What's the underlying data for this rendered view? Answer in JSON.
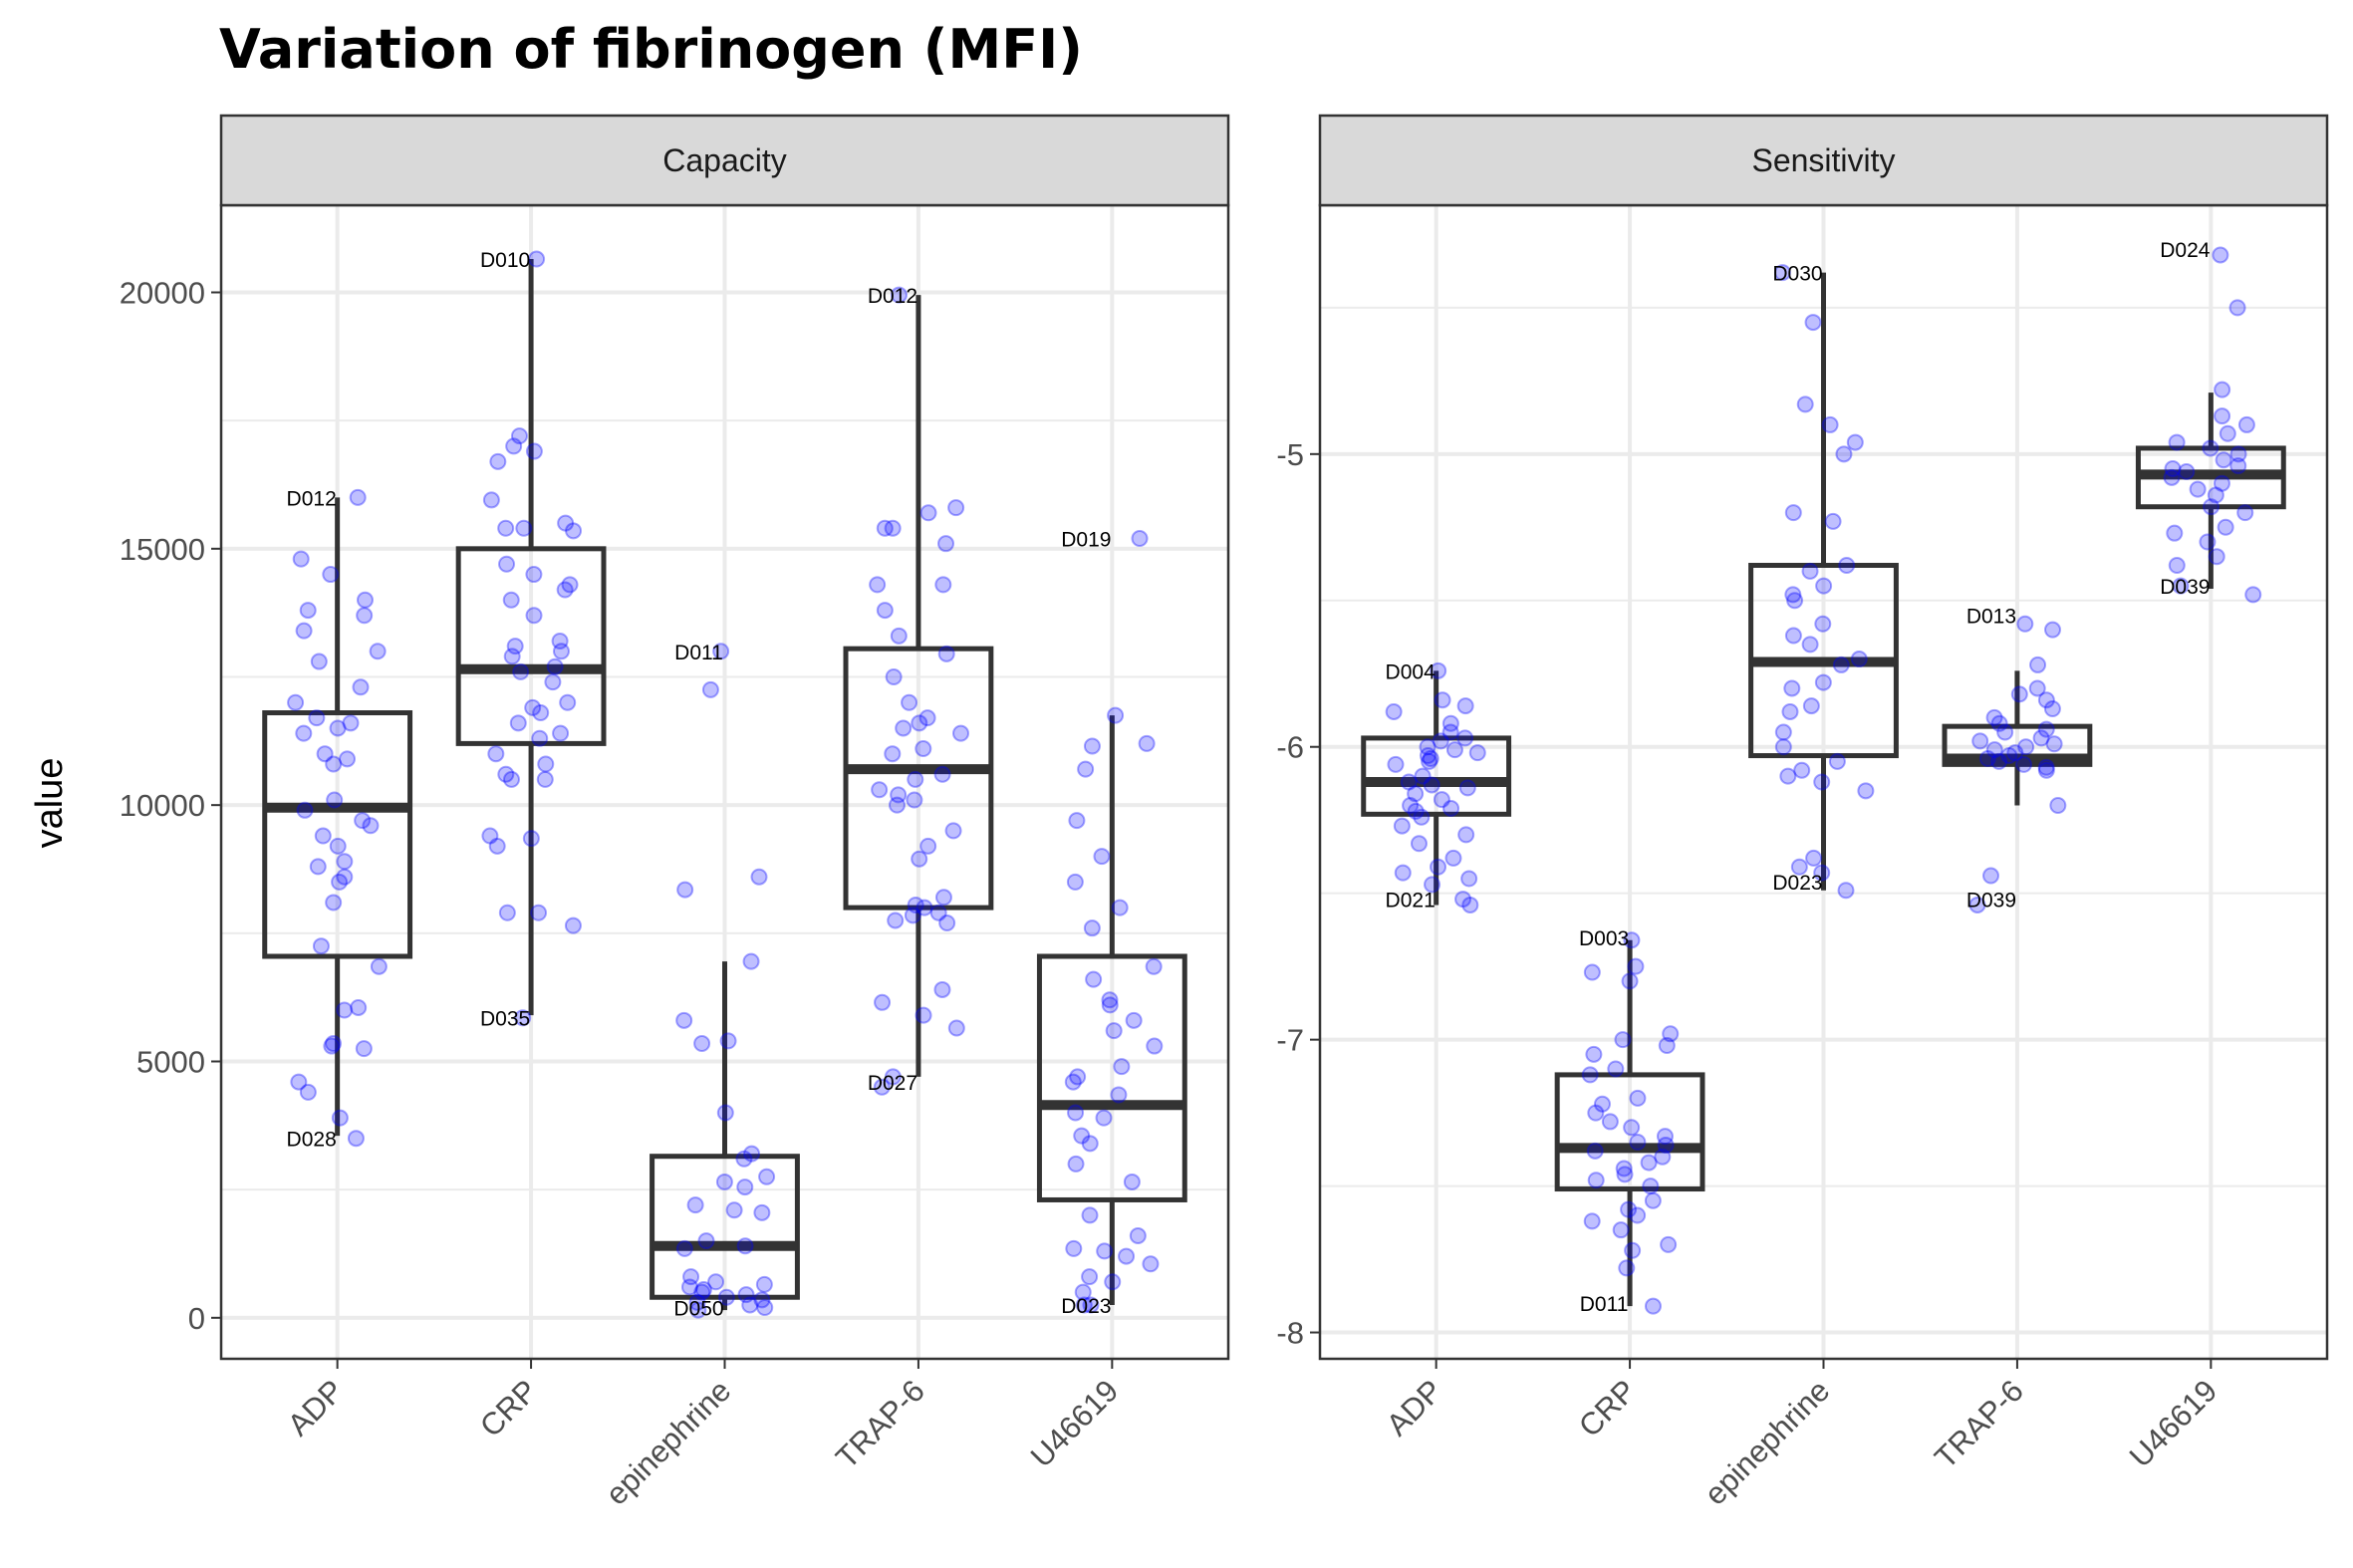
{
  "chart_data": {
    "type": "boxplot",
    "title": "Variation of fibrinogen (MFI)",
    "ylabel": "value",
    "xlabel": "",
    "grid": true,
    "categories": [
      "ADP",
      "CRP",
      "epinephrine",
      "TRAP-6",
      "U46619"
    ],
    "colors": {
      "points": "#0000ff",
      "box": "#333333",
      "strip_fill": "#d9d9d9",
      "grid": "#ebebeb"
    },
    "panels": [
      {
        "name": "Capacity",
        "ylim": [
          -800,
          21700
        ],
        "yticks": [
          0,
          5000,
          10000,
          15000,
          20000
        ],
        "ytick_labels": [
          "0",
          "5000",
          "10000",
          "15000",
          "20000"
        ],
        "boxes": [
          {
            "category": "ADP",
            "q1": 7050,
            "median": 9950,
            "q3": 11800,
            "whisker_low": 3550,
            "whisker_high": 16000
          },
          {
            "category": "CRP",
            "q1": 11200,
            "median": 12650,
            "q3": 15000,
            "whisker_low": 5900,
            "whisker_high": 20650
          },
          {
            "category": "epinephrine",
            "q1": 400,
            "median": 1400,
            "q3": 3150,
            "whisker_low": 150,
            "whisker_high": 6950
          },
          {
            "category": "TRAP-6",
            "q1": 8000,
            "median": 10700,
            "q3": 13050,
            "whisker_low": 4700,
            "whisker_high": 19950
          },
          {
            "category": "U46619",
            "q1": 2300,
            "median": 4150,
            "q3": 7050,
            "whisker_low": 250,
            "whisker_high": 11750
          }
        ],
        "points": [
          {
            "category": "ADP",
            "values": [
              16000,
              14800,
              14500,
              14000,
              13800,
              13700,
              13400,
              13000,
              12800,
              12300,
              12000,
              11700,
              11600,
              11500,
              11400,
              11000,
              10900,
              10800,
              10100,
              9900,
              9700,
              9600,
              9400,
              9200,
              8900,
              8800,
              8600,
              8500,
              8100,
              7250,
              6850,
              6050,
              6000,
              5350,
              5300,
              5250,
              4600,
              4400,
              3900,
              3500
            ]
          },
          {
            "category": "CRP",
            "values": [
              20650,
              17200,
              17000,
              16900,
              16700,
              15950,
              15500,
              15400,
              15400,
              15350,
              14700,
              14500,
              14300,
              14200,
              14000,
              13700,
              13200,
              13100,
              13000,
              12900,
              12700,
              12600,
              12400,
              12000,
              11900,
              11800,
              11600,
              11400,
              11300,
              11000,
              10800,
              10600,
              10500,
              10500,
              9400,
              9350,
              9200,
              7900,
              7900,
              7650,
              5850
            ]
          },
          {
            "category": "epinephrine",
            "values": [
              13000,
              12250,
              8600,
              8350,
              6950,
              5800,
              5400,
              5350,
              4000,
              3200,
              3100,
              2750,
              2650,
              2550,
              2200,
              2100,
              2050,
              1500,
              1400,
              1350,
              800,
              700,
              650,
              600,
              550,
              500,
              450,
              400,
              350,
              300,
              250,
              200,
              150
            ]
          },
          {
            "category": "TRAP-6",
            "values": [
              19950,
              15800,
              15700,
              15400,
              15400,
              15100,
              14300,
              14300,
              13800,
              13300,
              12950,
              12500,
              12000,
              11700,
              11600,
              11500,
              11400,
              11100,
              11000,
              10600,
              10500,
              10300,
              10200,
              10100,
              10000,
              9500,
              9200,
              8950,
              8200,
              8050,
              8000,
              7900,
              7850,
              7750,
              7700,
              6400,
              6150,
              5900,
              5650,
              4700,
              4500
            ]
          },
          {
            "category": "U46619",
            "values": [
              15200,
              11750,
              11200,
              11150,
              10700,
              9700,
              9000,
              8500,
              8000,
              7600,
              6850,
              6600,
              6200,
              6100,
              5800,
              5600,
              5300,
              4900,
              4700,
              4600,
              4350,
              4000,
              3900,
              3550,
              3400,
              3000,
              2650,
              2000,
              1600,
              1350,
              1300,
              1200,
              1050,
              800,
              700,
              500,
              250,
              250
            ]
          }
        ],
        "annotations": [
          {
            "category": "ADP",
            "label": "D012",
            "y": 16000
          },
          {
            "category": "ADP",
            "label": "D028",
            "y": 3500
          },
          {
            "category": "CRP",
            "label": "D010",
            "y": 20650
          },
          {
            "category": "CRP",
            "label": "D035",
            "y": 5850
          },
          {
            "category": "epinephrine",
            "label": "D011",
            "y": 13000
          },
          {
            "category": "epinephrine",
            "label": "D050",
            "y": 200
          },
          {
            "category": "TRAP-6",
            "label": "D012",
            "y": 19950
          },
          {
            "category": "TRAP-6",
            "label": "D027",
            "y": 4600
          },
          {
            "category": "U46619",
            "label": "D019",
            "y": 15200
          },
          {
            "category": "U46619",
            "label": "D023",
            "y": 250
          }
        ]
      },
      {
        "name": "Sensitivity",
        "ylim": [
          -8.09,
          -4.15
        ],
        "yticks": [
          -8,
          -7,
          -6,
          -5
        ],
        "ytick_labels": [
          "-8",
          "-7",
          "-6",
          "-5"
        ],
        "boxes": [
          {
            "category": "ADP",
            "q1": -6.23,
            "median": -6.12,
            "q3": -5.97,
            "whisker_low": -6.54,
            "whisker_high": -5.74
          },
          {
            "category": "CRP",
            "q1": -7.51,
            "median": -7.37,
            "q3": -7.12,
            "whisker_low": -7.91,
            "whisker_high": -6.66
          },
          {
            "category": "epinephrine",
            "q1": -6.03,
            "median": -5.71,
            "q3": -5.38,
            "whisker_low": -6.49,
            "whisker_high": -4.38
          },
          {
            "category": "TRAP-6",
            "q1": -6.06,
            "median": -6.04,
            "q3": -5.93,
            "whisker_low": -6.2,
            "whisker_high": -5.74
          },
          {
            "category": "U46619",
            "q1": -5.18,
            "median": -5.07,
            "q3": -4.98,
            "whisker_low": -5.46,
            "whisker_high": -4.79
          }
        ],
        "points": [
          {
            "category": "ADP",
            "values": [
              -5.74,
              -5.84,
              -5.86,
              -5.88,
              -5.92,
              -5.95,
              -5.97,
              -5.98,
              -6.0,
              -6.01,
              -6.02,
              -6.03,
              -6.04,
              -6.05,
              -6.06,
              -6.1,
              -6.12,
              -6.13,
              -6.14,
              -6.16,
              -6.18,
              -6.2,
              -6.21,
              -6.22,
              -6.24,
              -6.27,
              -6.3,
              -6.33,
              -6.38,
              -6.41,
              -6.43,
              -6.45,
              -6.47,
              -6.52,
              -6.54
            ]
          },
          {
            "category": "CRP",
            "values": [
              -6.66,
              -6.75,
              -6.77,
              -6.8,
              -6.98,
              -7.0,
              -7.02,
              -7.05,
              -7.1,
              -7.12,
              -7.2,
              -7.22,
              -7.25,
              -7.28,
              -7.3,
              -7.33,
              -7.35,
              -7.36,
              -7.38,
              -7.4,
              -7.42,
              -7.44,
              -7.46,
              -7.48,
              -7.5,
              -7.55,
              -7.58,
              -7.6,
              -7.62,
              -7.65,
              -7.7,
              -7.72,
              -7.78,
              -7.91
            ]
          },
          {
            "category": "epinephrine",
            "values": [
              -4.38,
              -4.55,
              -4.83,
              -4.9,
              -4.96,
              -5.0,
              -5.2,
              -5.23,
              -5.38,
              -5.4,
              -5.45,
              -5.48,
              -5.5,
              -5.58,
              -5.62,
              -5.65,
              -5.7,
              -5.72,
              -5.78,
              -5.8,
              -5.86,
              -5.88,
              -5.95,
              -6.0,
              -6.05,
              -6.08,
              -6.1,
              -6.12,
              -6.15,
              -6.38,
              -6.41,
              -6.43,
              -6.49
            ]
          },
          {
            "category": "TRAP-6",
            "values": [
              -5.58,
              -5.6,
              -5.72,
              -5.8,
              -5.82,
              -5.84,
              -5.87,
              -5.9,
              -5.92,
              -5.94,
              -5.95,
              -5.97,
              -5.98,
              -5.99,
              -6.0,
              -6.01,
              -6.02,
              -6.03,
              -6.04,
              -6.05,
              -6.06,
              -6.07,
              -6.08,
              -6.2,
              -6.44,
              -6.54
            ]
          },
          {
            "category": "U46619",
            "values": [
              -4.32,
              -4.5,
              -4.78,
              -4.87,
              -4.9,
              -4.93,
              -4.96,
              -4.98,
              -5.0,
              -5.02,
              -5.04,
              -5.05,
              -5.06,
              -5.08,
              -5.1,
              -5.12,
              -5.14,
              -5.18,
              -5.2,
              -5.25,
              -5.27,
              -5.3,
              -5.35,
              -5.38,
              -5.45,
              -5.48
            ]
          }
        ],
        "annotations": [
          {
            "category": "ADP",
            "label": "D004",
            "y": -5.74
          },
          {
            "category": "ADP",
            "label": "D021",
            "y": -6.52
          },
          {
            "category": "CRP",
            "label": "D003",
            "y": -6.65
          },
          {
            "category": "CRP",
            "label": "D011",
            "y": -7.9
          },
          {
            "category": "epinephrine",
            "label": "D030",
            "y": -4.38
          },
          {
            "category": "epinephrine",
            "label": "D023",
            "y": -6.46
          },
          {
            "category": "TRAP-6",
            "label": "D013",
            "y": -5.55
          },
          {
            "category": "TRAP-6",
            "label": "D039",
            "y": -6.52
          },
          {
            "category": "U46619",
            "label": "D024",
            "y": -4.3
          },
          {
            "category": "U46619",
            "label": "D039",
            "y": -5.45
          }
        ]
      }
    ]
  }
}
